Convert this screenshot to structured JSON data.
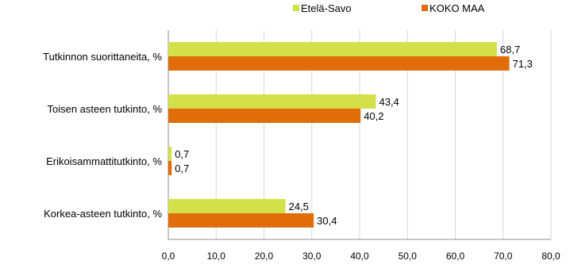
{
  "chart_data": {
    "type": "bar",
    "orientation": "horizontal",
    "categories": [
      "Tutkinnon suorittaneita, %",
      "Toisen asteen tutkinto, %",
      "Erikoisammattitutkinto, %",
      "Korkea-asteen tutkinto, %"
    ],
    "series": [
      {
        "name": "Etelä-Savo",
        "color": "#d4e04a",
        "values": [
          68.7,
          43.4,
          0.7,
          24.5
        ]
      },
      {
        "name": "KOKO MAA",
        "color": "#e06c0a",
        "values": [
          71.3,
          40.2,
          0.7,
          30.4
        ]
      }
    ],
    "xlim": [
      0,
      80
    ],
    "xticks": [
      "0,0",
      "10,0",
      "20,0",
      "30,0",
      "40,0",
      "50,0",
      "60,0",
      "70,0",
      "80,0"
    ],
    "data_labels": [
      [
        "68,7",
        "43,4",
        "0,7",
        "24,5"
      ],
      [
        "71,3",
        "40,2",
        "0,7",
        "30,4"
      ]
    ],
    "gridlines": true,
    "legend_position": "top-right",
    "title": "",
    "xlabel": "",
    "ylabel": ""
  }
}
